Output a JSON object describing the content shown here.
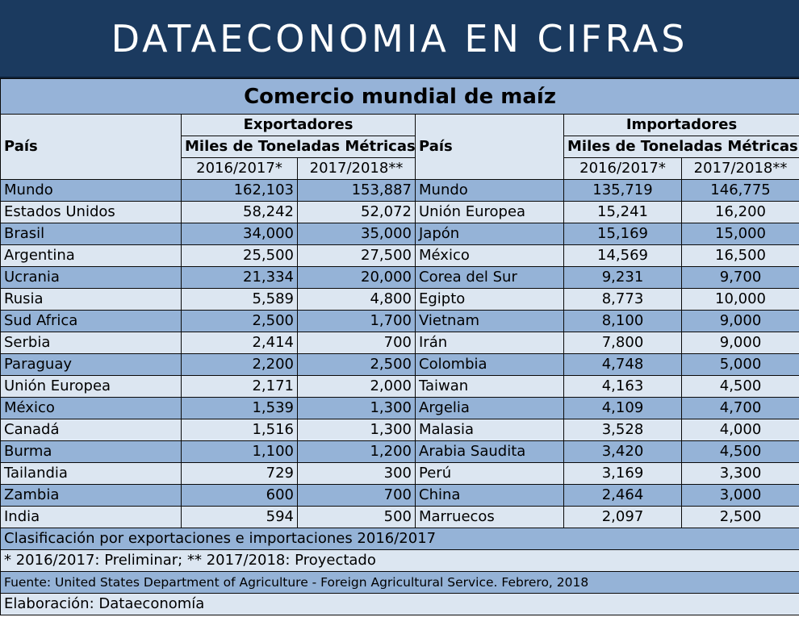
{
  "banner": {
    "title": "DATAECONOMIA EN CIFRAS"
  },
  "table": {
    "title": "Comercio mundial de maíz",
    "left": {
      "country_header": "País",
      "group": "Exportadores",
      "unit": "Miles de Toneladas Métricas",
      "years": [
        "2016/2017*",
        "2017/2018**"
      ]
    },
    "right": {
      "country_header": "País",
      "group": "Importadores",
      "unit": "Miles de Toneladas Métricas",
      "years": [
        "2016/2017*",
        "2017/2018**"
      ]
    },
    "rows": [
      {
        "exp": "Mundo",
        "e1": "162,103",
        "e2": "153,887",
        "imp": "Mundo",
        "i1": "135,719",
        "i2": "146,775"
      },
      {
        "exp": "Estados Unidos",
        "e1": "58,242",
        "e2": "52,072",
        "imp": "Unión Europea",
        "i1": "15,241",
        "i2": "16,200"
      },
      {
        "exp": "Brasil",
        "e1": "34,000",
        "e2": "35,000",
        "imp": "Japón",
        "i1": "15,169",
        "i2": "15,000"
      },
      {
        "exp": "Argentina",
        "e1": "25,500",
        "e2": "27,500",
        "imp": "México",
        "i1": "14,569",
        "i2": "16,500"
      },
      {
        "exp": "Ucrania",
        "e1": "21,334",
        "e2": "20,000",
        "imp": "Corea del Sur",
        "i1": "9,231",
        "i2": "9,700"
      },
      {
        "exp": "Rusia",
        "e1": "5,589",
        "e2": "4,800",
        "imp": "Egipto",
        "i1": "8,773",
        "i2": "10,000"
      },
      {
        "exp": "Sud Africa",
        "e1": "2,500",
        "e2": "1,700",
        "imp": "Vietnam",
        "i1": "8,100",
        "i2": "9,000"
      },
      {
        "exp": "Serbia",
        "e1": "2,414",
        "e2": "700",
        "imp": "Irán",
        "i1": "7,800",
        "i2": "9,000"
      },
      {
        "exp": "Paraguay",
        "e1": "2,200",
        "e2": "2,500",
        "imp": "Colombia",
        "i1": "4,748",
        "i2": "5,000"
      },
      {
        "exp": "Unión Europea",
        "e1": "2,171",
        "e2": "2,000",
        "imp": "Taiwan",
        "i1": "4,163",
        "i2": "4,500"
      },
      {
        "exp": "México",
        "e1": "1,539",
        "e2": "1,300",
        "imp": "Argelia",
        "i1": "4,109",
        "i2": "4,700"
      },
      {
        "exp": "Canadá",
        "e1": "1,516",
        "e2": "1,300",
        "imp": "Malasia",
        "i1": "3,528",
        "i2": "4,000"
      },
      {
        "exp": "Burma",
        "e1": "1,100",
        "e2": "1,200",
        "imp": "Arabia Saudita",
        "i1": "3,420",
        "i2": "4,500"
      },
      {
        "exp": "Tailandia",
        "e1": "729",
        "e2": "300",
        "imp": "Perú",
        "i1": "3,169",
        "i2": "3,300"
      },
      {
        "exp": "Zambia",
        "e1": "600",
        "e2": "700",
        "imp": "China",
        "i1": "2,464",
        "i2": "3,000"
      },
      {
        "exp": "India",
        "e1": "594",
        "e2": "500",
        "imp": "Marruecos",
        "i1": "2,097",
        "i2": "2,500"
      }
    ],
    "footnotes": [
      "Clasificación por exportaciones e importaciones 2016/2017",
      "* 2016/2017: Preliminar; ** 2017/2018: Proyectado",
      "Fuente: United States Department of Agriculture - Foreign Agricultural Service. Febrero, 2018",
      "Elaboración: Dataeconomía"
    ]
  },
  "colors": {
    "banner": "#1b3a5f",
    "row_dark": "#95b3d7",
    "row_light": "#dce6f1"
  }
}
